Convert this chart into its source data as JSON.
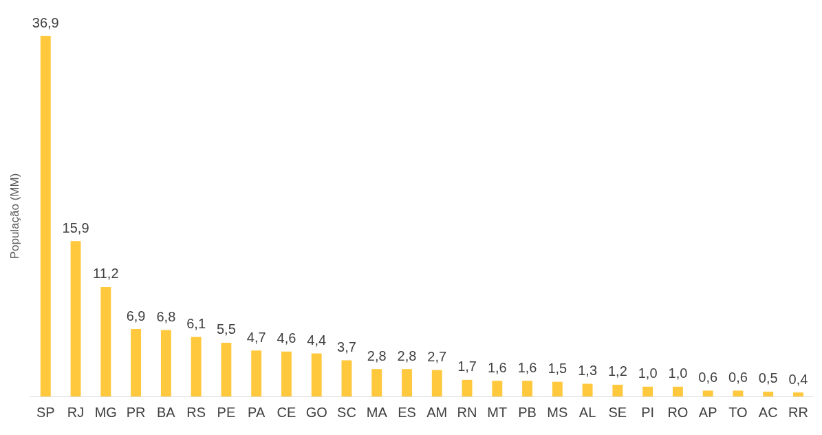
{
  "chart_data": {
    "type": "bar",
    "ylabel": "População (MM)",
    "categories": [
      "SP",
      "RJ",
      "MG",
      "PR",
      "BA",
      "RS",
      "PE",
      "PA",
      "CE",
      "GO",
      "SC",
      "MA",
      "ES",
      "AM",
      "RN",
      "MT",
      "PB",
      "MS",
      "AL",
      "SE",
      "PI",
      "RO",
      "AP",
      "TO",
      "AC",
      "RR"
    ],
    "values": [
      36.9,
      15.9,
      11.2,
      6.9,
      6.8,
      6.1,
      5.5,
      4.7,
      4.6,
      4.4,
      3.7,
      2.8,
      2.8,
      2.7,
      1.7,
      1.6,
      1.6,
      1.5,
      1.3,
      1.2,
      1.0,
      1.0,
      0.6,
      0.6,
      0.5,
      0.4
    ],
    "value_labels": [
      "36,9",
      "15,9",
      "11,2",
      "6,9",
      "6,8",
      "6,1",
      "5,5",
      "4,7",
      "4,6",
      "4,4",
      "3,7",
      "2,8",
      "2,8",
      "2,7",
      "1,7",
      "1,6",
      "1,6",
      "1,5",
      "1,3",
      "1,2",
      "1,0",
      "1,0",
      "0,6",
      "0,6",
      "0,5",
      "0,4"
    ],
    "color": "#ffc83d",
    "grid": false,
    "legend": false
  }
}
